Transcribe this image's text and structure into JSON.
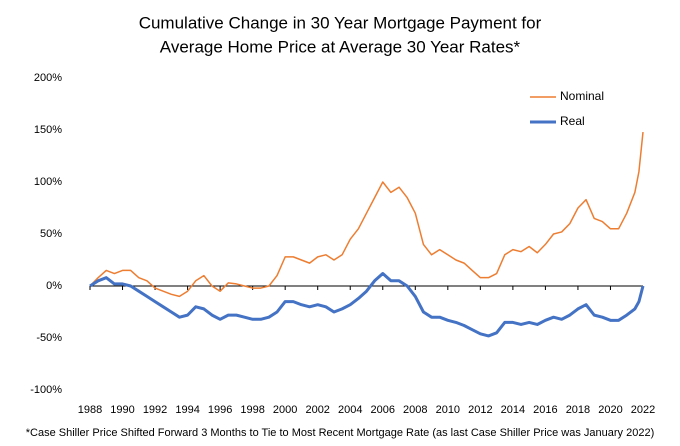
{
  "chart_data": {
    "type": "line",
    "title": [
      "Cumulative Change in 30 Year Mortgage Payment for",
      "Average Home Price at Average 30 Year Rates*"
    ],
    "footnote": "*Case Shiller Price Shifted Forward 3 Months to Tie to Most Recent Mortgage Rate (as last Case Shiller Price was January 2022)",
    "x": [
      1988,
      1988.5,
      1989,
      1989.5,
      1990,
      1990.5,
      1991,
      1991.5,
      1992,
      1992.5,
      1993,
      1993.5,
      1994,
      1994.5,
      1995,
      1995.5,
      1996,
      1996.5,
      1997,
      1997.5,
      1998,
      1998.5,
      1999,
      1999.5,
      2000,
      2000.5,
      2001,
      2001.5,
      2002,
      2002.5,
      2003,
      2003.5,
      2004,
      2004.5,
      2005,
      2005.5,
      2006,
      2006.5,
      2007,
      2007.5,
      2008,
      2008.5,
      2009,
      2009.5,
      2010,
      2010.5,
      2011,
      2011.5,
      2012,
      2012.5,
      2013,
      2013.5,
      2014,
      2014.5,
      2015,
      2015.5,
      2016,
      2016.5,
      2017,
      2017.5,
      2018,
      2018.5,
      2019,
      2019.5,
      2020,
      2020.5,
      2021,
      2021.5,
      2021.75,
      2022
    ],
    "series": [
      {
        "name": "Nominal",
        "color": "#ED7D31",
        "values": [
          0,
          8,
          15,
          12,
          15,
          15,
          8,
          5,
          -2,
          -5,
          -8,
          -10,
          -5,
          5,
          10,
          0,
          -5,
          3,
          2,
          0,
          -2,
          -2,
          0,
          10,
          28,
          28,
          25,
          22,
          28,
          30,
          25,
          30,
          45,
          55,
          70,
          85,
          100,
          90,
          95,
          85,
          70,
          40,
          30,
          35,
          30,
          25,
          22,
          15,
          8,
          8,
          12,
          30,
          35,
          33,
          38,
          32,
          40,
          50,
          52,
          60,
          75,
          83,
          65,
          62,
          55,
          55,
          70,
          90,
          110,
          148
        ]
      },
      {
        "name": "Real",
        "color": "#4472C4",
        "values": [
          0,
          5,
          8,
          2,
          2,
          0,
          -5,
          -10,
          -15,
          -20,
          -25,
          -30,
          -28,
          -20,
          -22,
          -28,
          -32,
          -28,
          -28,
          -30,
          -32,
          -32,
          -30,
          -25,
          -15,
          -15,
          -18,
          -20,
          -18,
          -20,
          -25,
          -22,
          -18,
          -12,
          -5,
          5,
          12,
          5,
          5,
          0,
          -10,
          -25,
          -30,
          -30,
          -33,
          -35,
          -38,
          -42,
          -46,
          -48,
          -45,
          -35,
          -35,
          -37,
          -35,
          -37,
          -33,
          -30,
          -32,
          -28,
          -22,
          -18,
          -28,
          -30,
          -33,
          -33,
          -28,
          -22,
          -15,
          0
        ]
      }
    ],
    "xlim": [
      1988,
      2022
    ],
    "xticks": [
      1988,
      1990,
      1992,
      1994,
      1996,
      1998,
      2000,
      2002,
      2004,
      2006,
      2008,
      2010,
      2012,
      2014,
      2016,
      2018,
      2020,
      2022
    ],
    "ylim": [
      -100,
      200
    ],
    "yticks": [
      {
        "value": -100,
        "label": "-100%"
      },
      {
        "value": -50,
        "label": "-50%"
      },
      {
        "value": 0,
        "label": "0%"
      },
      {
        "value": 50,
        "label": "50%"
      },
      {
        "value": 100,
        "label": "100%"
      },
      {
        "value": 150,
        "label": "150%"
      },
      {
        "value": 200,
        "label": "200%"
      }
    ],
    "legend": "upper right",
    "grid": false
  }
}
